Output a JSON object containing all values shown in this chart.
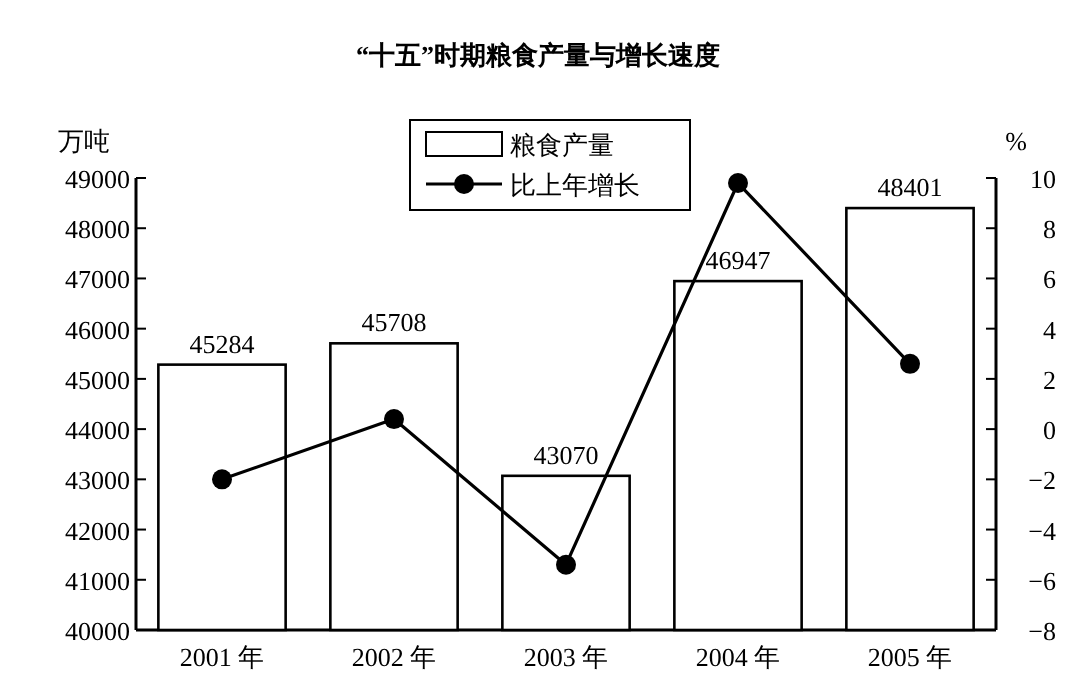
{
  "chart_data": {
    "type": "bar",
    "title": "“十五”时期粮食产量与增长速度",
    "categories": [
      "2001 年",
      "2002 年",
      "2003 年",
      "2004 年",
      "2005 年"
    ],
    "ylabel": "万吨",
    "y2label": "%",
    "ylim": [
      40000,
      49000
    ],
    "yticks": [
      40000,
      41000,
      42000,
      43000,
      44000,
      45000,
      46000,
      47000,
      48000,
      49000
    ],
    "y2lim": [
      -8,
      10
    ],
    "y2ticks": [
      -8,
      -6,
      -4,
      -2,
      0,
      2,
      4,
      6,
      8,
      10
    ],
    "legend": "top",
    "grid": false,
    "series": [
      {
        "name": "粮食产量",
        "color": "#ffffff",
        "values": [
          45284,
          45708,
          43070,
          46947,
          48401
        ],
        "value_labels": [
          "45284",
          "45708",
          "43070",
          "46947",
          "48401"
        ]
      },
      {
        "name": "比上年增长",
        "type": "line",
        "axis": "y2",
        "color": "#000000",
        "marker": "circle",
        "values": [
          -2.0,
          0.4,
          -5.4,
          9.8,
          2.6
        ]
      }
    ]
  }
}
